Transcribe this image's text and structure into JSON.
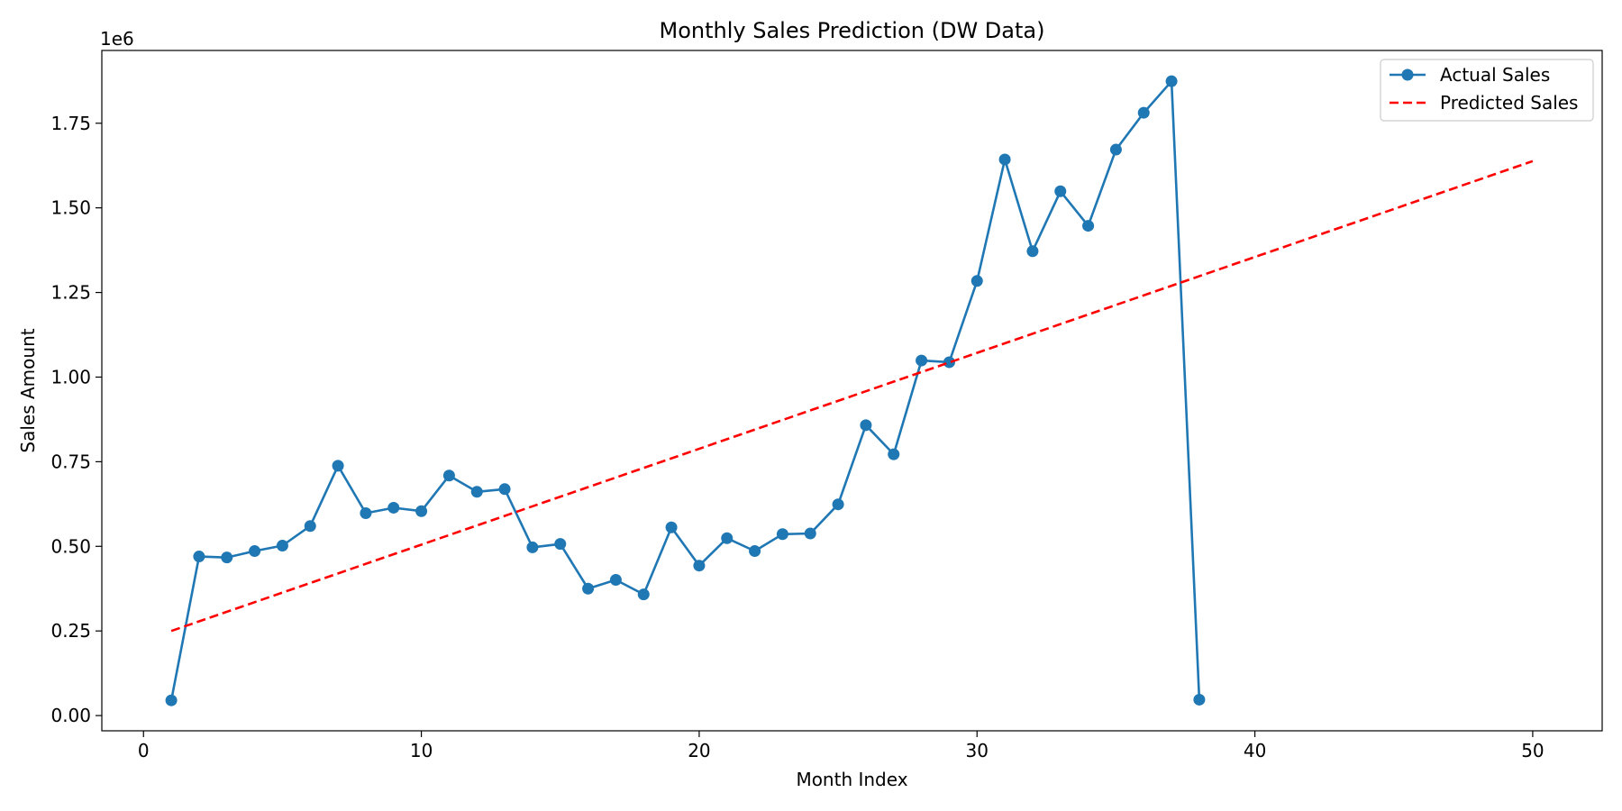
{
  "chart_data": {
    "type": "line",
    "title": "Monthly Sales Prediction (DW Data)",
    "xlabel": "Month Index",
    "ylabel": "Sales Amount",
    "y_offset_label": "1e6",
    "xlim": [
      -1.5,
      52.5
    ],
    "ylim": [
      -0.045,
      1.965
    ],
    "y_scale_factor": 1000000,
    "x_ticks": [
      0,
      10,
      20,
      30,
      40,
      50
    ],
    "y_ticks": [
      0.0,
      0.25,
      0.5,
      0.75,
      1.0,
      1.25,
      1.5,
      1.75
    ],
    "y_tick_labels": [
      "0.00",
      "0.25",
      "0.50",
      "0.75",
      "1.00",
      "1.25",
      "1.50",
      "1.75"
    ],
    "grid": false,
    "legend_position": "top-right",
    "series": [
      {
        "name": "Actual Sales",
        "style": "solid-with-markers",
        "color": "#1f77b4",
        "x": [
          1,
          2,
          3,
          4,
          5,
          6,
          7,
          8,
          9,
          10,
          11,
          12,
          13,
          14,
          15,
          16,
          17,
          18,
          19,
          20,
          21,
          22,
          23,
          24,
          25,
          26,
          27,
          28,
          29,
          30,
          31,
          32,
          33,
          34,
          35,
          36,
          37,
          38
        ],
        "y": [
          0.045,
          0.47,
          0.467,
          0.486,
          0.502,
          0.56,
          0.738,
          0.598,
          0.614,
          0.604,
          0.709,
          0.661,
          0.669,
          0.497,
          0.507,
          0.375,
          0.401,
          0.358,
          0.556,
          0.443,
          0.524,
          0.486,
          0.536,
          0.538,
          0.624,
          0.858,
          0.772,
          1.049,
          1.044,
          1.284,
          1.643,
          1.372,
          1.549,
          1.447,
          1.672,
          1.781,
          1.874,
          0.047
        ]
      },
      {
        "name": "Predicted Sales",
        "style": "dashed",
        "color": "#ff0000",
        "x": [
          1,
          50
        ],
        "y": [
          0.25,
          1.638
        ]
      }
    ]
  }
}
